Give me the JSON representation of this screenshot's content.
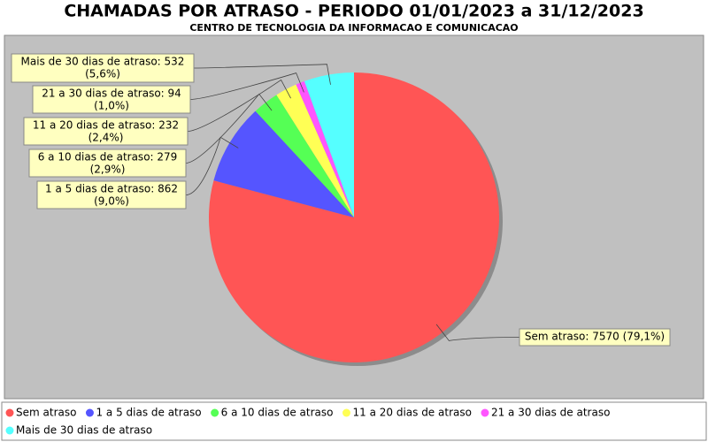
{
  "chart_data": {
    "type": "pie",
    "title": "CHAMADAS POR ATRASO - PERIODO 01/01/2023 a 31/12/2023",
    "subtitle": "CENTRO DE TECNOLOGIA DA INFORMACAO E COMUNICACAO",
    "categories": [
      "Sem atraso",
      "1 a 5 dias de atraso",
      "6 a 10 dias de atraso",
      "11 a 20 dias de atraso",
      "21 a 30 dias de atraso",
      "Mais de 30 dias de atraso"
    ],
    "values": [
      7570,
      862,
      279,
      232,
      94,
      532
    ],
    "value_labels": [
      [
        "Sem atraso: 7570 (79,1%)"
      ],
      [
        "1 a 5 dias de atraso: 862",
        "(9,0%)"
      ],
      [
        "6 a 10 dias de atraso: 279",
        "(2,9%)"
      ],
      [
        "11 a 20 dias de atraso: 232",
        "(2,4%)"
      ],
      [
        "21 a 30 dias de atraso: 94",
        "(1,0%)"
      ],
      [
        "Mais de 30 dias de atraso: 532",
        "(5,6%)"
      ]
    ],
    "colors": [
      "#ff5555",
      "#5555ff",
      "#55ff55",
      "#ffff55",
      "#ff55ff",
      "#55ffff"
    ],
    "legend": "bottom"
  }
}
